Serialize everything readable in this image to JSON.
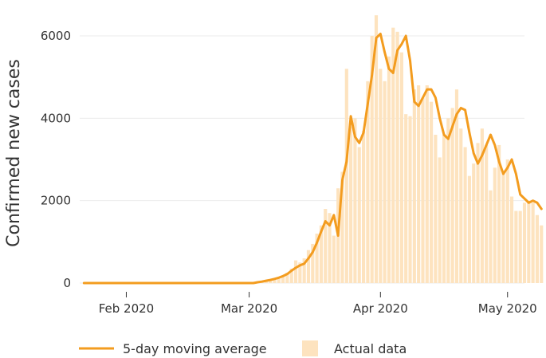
{
  "chart_data": {
    "type": "bar",
    "ylabel": "Confirmed new cases",
    "xlabel": "",
    "title": "",
    "x_ticks": [
      {
        "date": "2020-02-01",
        "label": "Feb 2020"
      },
      {
        "date": "2020-03-01",
        "label": "Mar 2020"
      },
      {
        "date": "2020-04-01",
        "label": "Apr 2020"
      },
      {
        "date": "2020-05-01",
        "label": "May 2020"
      }
    ],
    "y_ticks": [
      0,
      2000,
      4000,
      6000
    ],
    "ylim": [
      0,
      6600
    ],
    "xlim": [
      "2020-01-21",
      "2020-05-05"
    ],
    "grid": "horizontal",
    "legend_position": "bottom",
    "colors": {
      "line": "#f39c1f",
      "bars": "#fde3bf"
    },
    "series": [
      {
        "name": "Actual data",
        "kind": "bar",
        "start_date": "2020-01-22",
        "values": [
          0,
          0,
          0,
          0,
          0,
          0,
          0,
          0,
          0,
          0,
          0,
          0,
          0,
          0,
          0,
          0,
          0,
          0,
          0,
          0,
          0,
          0,
          0,
          0,
          0,
          0,
          0,
          0,
          0,
          0,
          0,
          0,
          0,
          0,
          0,
          0,
          0,
          0,
          0,
          0,
          0,
          10,
          20,
          40,
          60,
          80,
          120,
          150,
          250,
          350,
          550,
          500,
          600,
          800,
          950,
          1200,
          1400,
          1800,
          1700,
          1150,
          2300,
          2700,
          5200,
          3800,
          4000,
          3300,
          3700,
          4900,
          6000,
          6500,
          5200,
          4900,
          5500,
          6200,
          6100,
          5600,
          4100,
          4050,
          4700,
          4800,
          4500,
          4800,
          4400,
          3600,
          3050,
          3600,
          4000,
          4250,
          4700,
          3750,
          3300,
          2600,
          2900,
          3400,
          3750,
          3350,
          2250,
          2800,
          3350,
          2700,
          3000,
          2100,
          1750,
          1750,
          1950,
          2000,
          1950,
          1650,
          1400
        ]
      },
      {
        "name": "5-day moving average",
        "kind": "line",
        "start_date": "2020-01-22",
        "values": [
          0,
          0,
          0,
          0,
          0,
          0,
          0,
          0,
          0,
          0,
          0,
          0,
          0,
          0,
          0,
          0,
          0,
          0,
          0,
          0,
          0,
          0,
          0,
          0,
          0,
          0,
          0,
          0,
          0,
          0,
          0,
          0,
          0,
          0,
          0,
          0,
          0,
          0,
          0,
          0,
          0,
          20,
          35,
          55,
          75,
          100,
          130,
          170,
          220,
          300,
          370,
          430,
          470,
          600,
          750,
          980,
          1250,
          1500,
          1400,
          1650,
          1150,
          2500,
          2950,
          4050,
          3550,
          3400,
          3650,
          4350,
          5050,
          5950,
          6050,
          5600,
          5200,
          5100,
          5650,
          5800,
          6000,
          5400,
          4400,
          4300,
          4500,
          4700,
          4700,
          4500,
          4000,
          3600,
          3500,
          3800,
          4100,
          4250,
          4200,
          3650,
          3150,
          2900,
          3100,
          3350,
          3600,
          3350,
          2950,
          2650,
          2800,
          3000,
          2650,
          2150,
          2050,
          1950,
          2000,
          1950,
          1800
        ]
      }
    ]
  },
  "legend": {
    "line_label": "5-day moving average",
    "bar_label": "Actual data"
  }
}
